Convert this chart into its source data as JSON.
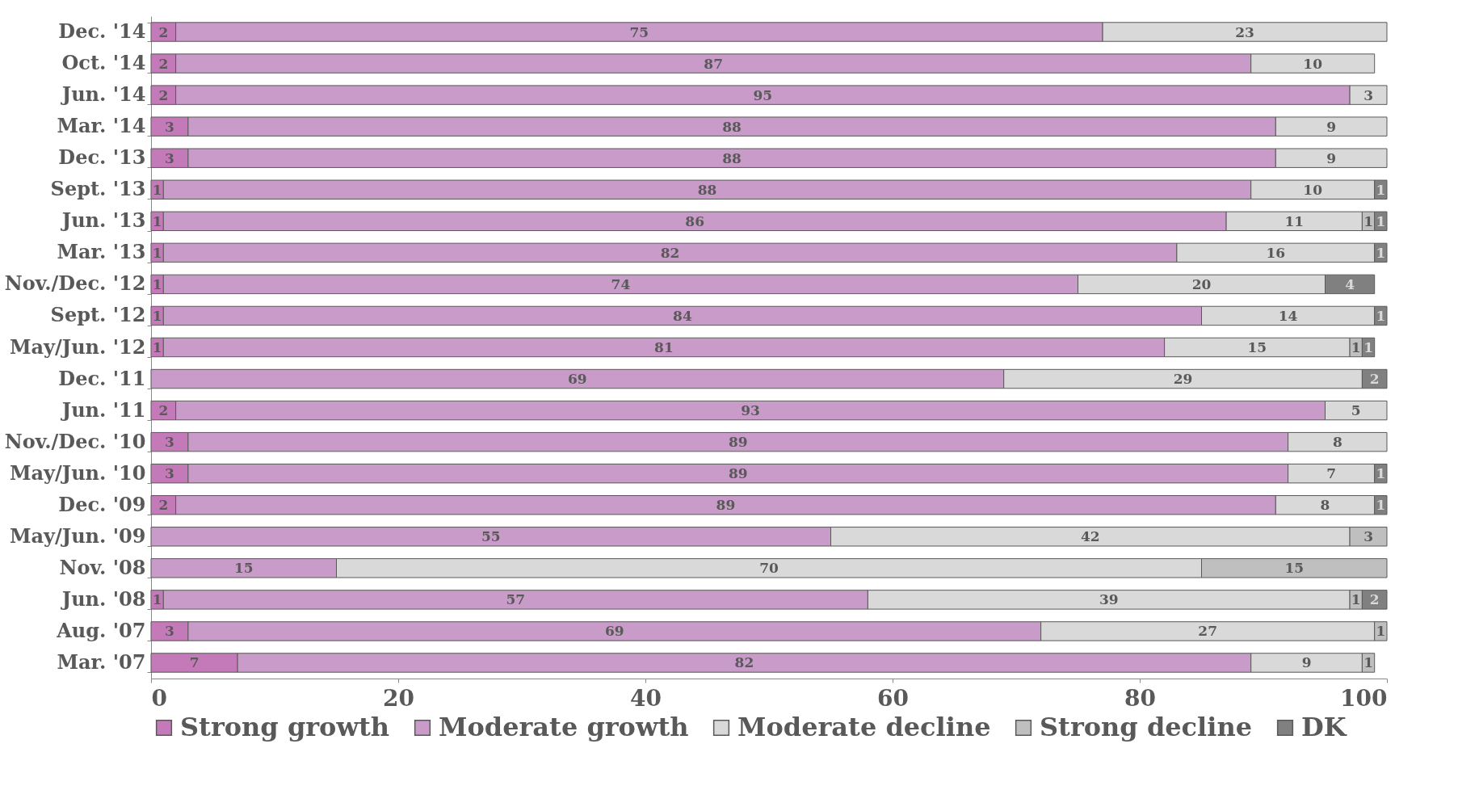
{
  "chart_data": {
    "type": "bar",
    "orientation": "horizontal",
    "stacked": true,
    "data_labels": true,
    "legend": "bottom",
    "grid": false,
    "categories": [
      "Dec. '14",
      "Oct. '14",
      "Jun. '14",
      "Mar. '14",
      "Dec. '13",
      "Sept. '13",
      "Jun. '13",
      "Mar. '13",
      "Nov./Dec. '12",
      "Sept. '12",
      "May/Jun. '12",
      "Dec. '11",
      "Jun. '11",
      "Nov./Dec. '10",
      "May/Jun. '10",
      "Dec. '09",
      "May/Jun. '09",
      "Nov. '08",
      "Jun. '08",
      "Aug. '07",
      "Mar. '07"
    ],
    "xlim": [
      0,
      100
    ],
    "xticks": [
      0,
      20,
      40,
      60,
      80,
      100
    ],
    "series": [
      {
        "name": "Strong growth",
        "color": "#c47ab8",
        "values": [
          2,
          2,
          2,
          3,
          3,
          1,
          1,
          1,
          1,
          1,
          1,
          null,
          2,
          3,
          3,
          2,
          null,
          null,
          1,
          3,
          7
        ]
      },
      {
        "name": "Moderate growth",
        "color": "#c89bc8",
        "values": [
          75,
          87,
          95,
          88,
          88,
          88,
          86,
          82,
          74,
          84,
          81,
          69,
          93,
          89,
          89,
          89,
          55,
          15,
          57,
          69,
          82
        ]
      },
      {
        "name": "Moderate decline",
        "color": "#d9d9d9",
        "values": [
          23,
          10,
          3,
          9,
          9,
          10,
          11,
          16,
          20,
          14,
          15,
          29,
          5,
          8,
          7,
          8,
          42,
          70,
          39,
          27,
          9
        ]
      },
      {
        "name": "Strong decline",
        "color": "#bfbfbf",
        "values": [
          null,
          null,
          null,
          null,
          null,
          null,
          1,
          null,
          null,
          null,
          1,
          null,
          null,
          null,
          null,
          null,
          3,
          15,
          1,
          1,
          1
        ]
      },
      {
        "name": "DK",
        "color": "#808080",
        "values": [
          null,
          null,
          null,
          null,
          null,
          1,
          1,
          1,
          4,
          1,
          1,
          2,
          null,
          null,
          1,
          1,
          null,
          null,
          2,
          null,
          null
        ]
      }
    ]
  }
}
